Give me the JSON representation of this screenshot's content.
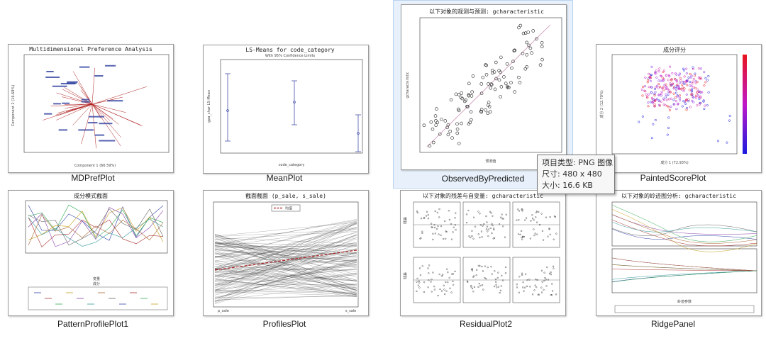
{
  "files": [
    {
      "name": "MDPrefPlot",
      "plot_title": "Multidimensional Preference Analysis",
      "x_axis": "Component 1 (66.59%)",
      "y_axis": "Component 2 (16.69%)"
    },
    {
      "name": "MeanPlot",
      "plot_title": "LS-Means for code_category",
      "plot_subtitle": "With 95% Confidence Limits",
      "x_axis": "code_category",
      "y_axis": "gpa_char LS-Mean"
    },
    {
      "name": "ObservedByPredicted",
      "plot_title": "以下对象的观测与预测: gcharacteristic",
      "x_axis": "预测值",
      "y_axis": "gcharacteristic"
    },
    {
      "name": "PaintedScorePlot",
      "plot_title": "成分评分",
      "x_axis": "成分 1 (72.93%)",
      "y_axis": "成分 2 (12.70%)"
    },
    {
      "name": "PatternProfilePlot1",
      "plot_title": "成分模式截面",
      "x_axis": "变量",
      "legend_title": "成分"
    },
    {
      "name": "ProfilesPlot",
      "plot_title": "截面截面 (p_sale, s_sale)",
      "legend_label": "均值",
      "x_ticks": [
        "p_sale",
        "s_sale"
      ]
    },
    {
      "name": "ResidualPlot2",
      "plot_title": "以下对象的残差与自变量: gcharacteristic",
      "y_axis": "残差"
    },
    {
      "name": "RidgePanel",
      "plot_title": "以下对象的岭迹图分析: gcharacteristic",
      "x_axis": "岭迹参数"
    }
  ],
  "tooltip": {
    "type_line": "项目类型: PNG 图像",
    "size_line": "尺寸: 480 x 480",
    "filesize_line": "大小: 16.6 KB"
  },
  "colors": {
    "selection_bg": "#e8f1fb",
    "selection_border": "#b9d3ef",
    "plot_red": "#b02020",
    "plot_blue": "#2d3d9e"
  }
}
